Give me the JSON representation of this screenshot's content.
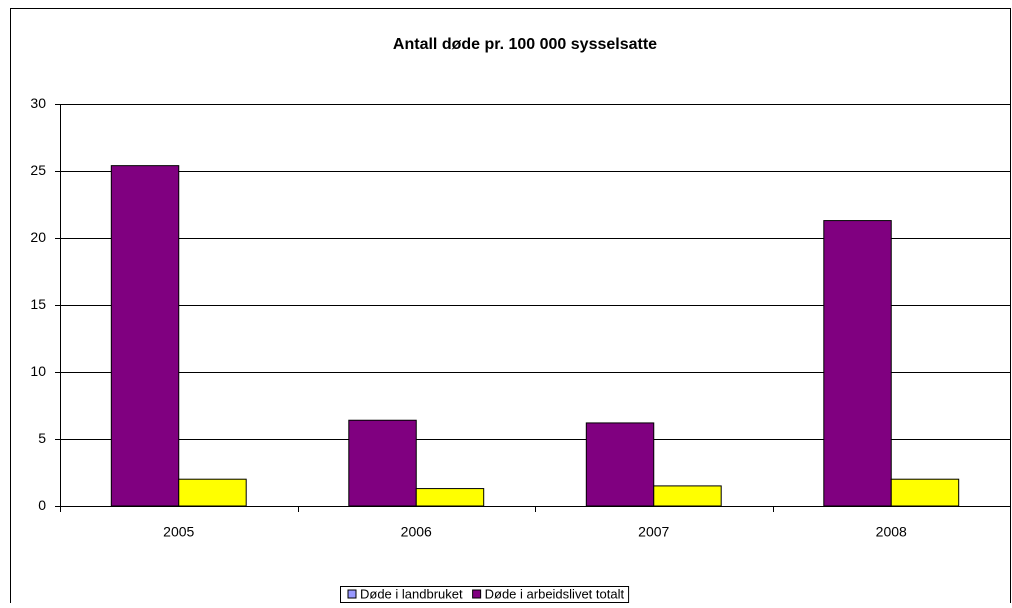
{
  "chart_data": {
    "type": "bar",
    "title": "Antall døde pr. 100 000 sysselsatte",
    "categories": [
      "2005",
      "2006",
      "2007",
      "2008"
    ],
    "series": [
      {
        "name": "Døde i landbruket",
        "color": "#800080",
        "legend_color": "#9999ff",
        "values": [
          25.4,
          6.4,
          6.2,
          21.3
        ]
      },
      {
        "name": "Døde i arbeidslivet totalt",
        "color": "#ffff00",
        "legend_color": "#800080",
        "values": [
          2.0,
          1.3,
          1.5,
          2.0
        ]
      }
    ],
    "ylim": [
      0,
      30
    ],
    "yticks": [
      0,
      5,
      10,
      15,
      20,
      25,
      30
    ],
    "grid": true,
    "legend": "bottom"
  }
}
